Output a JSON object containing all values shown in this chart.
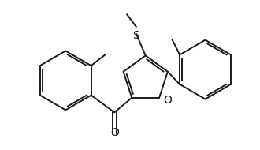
{
  "bg_color": "#ffffff",
  "line_color": "#1a1a1a",
  "line_width": 1.4,
  "figsize": [
    3.3,
    1.9
  ],
  "dpi": 100,
  "xlim": [
    0,
    330
  ],
  "ylim": [
    0,
    190
  ]
}
